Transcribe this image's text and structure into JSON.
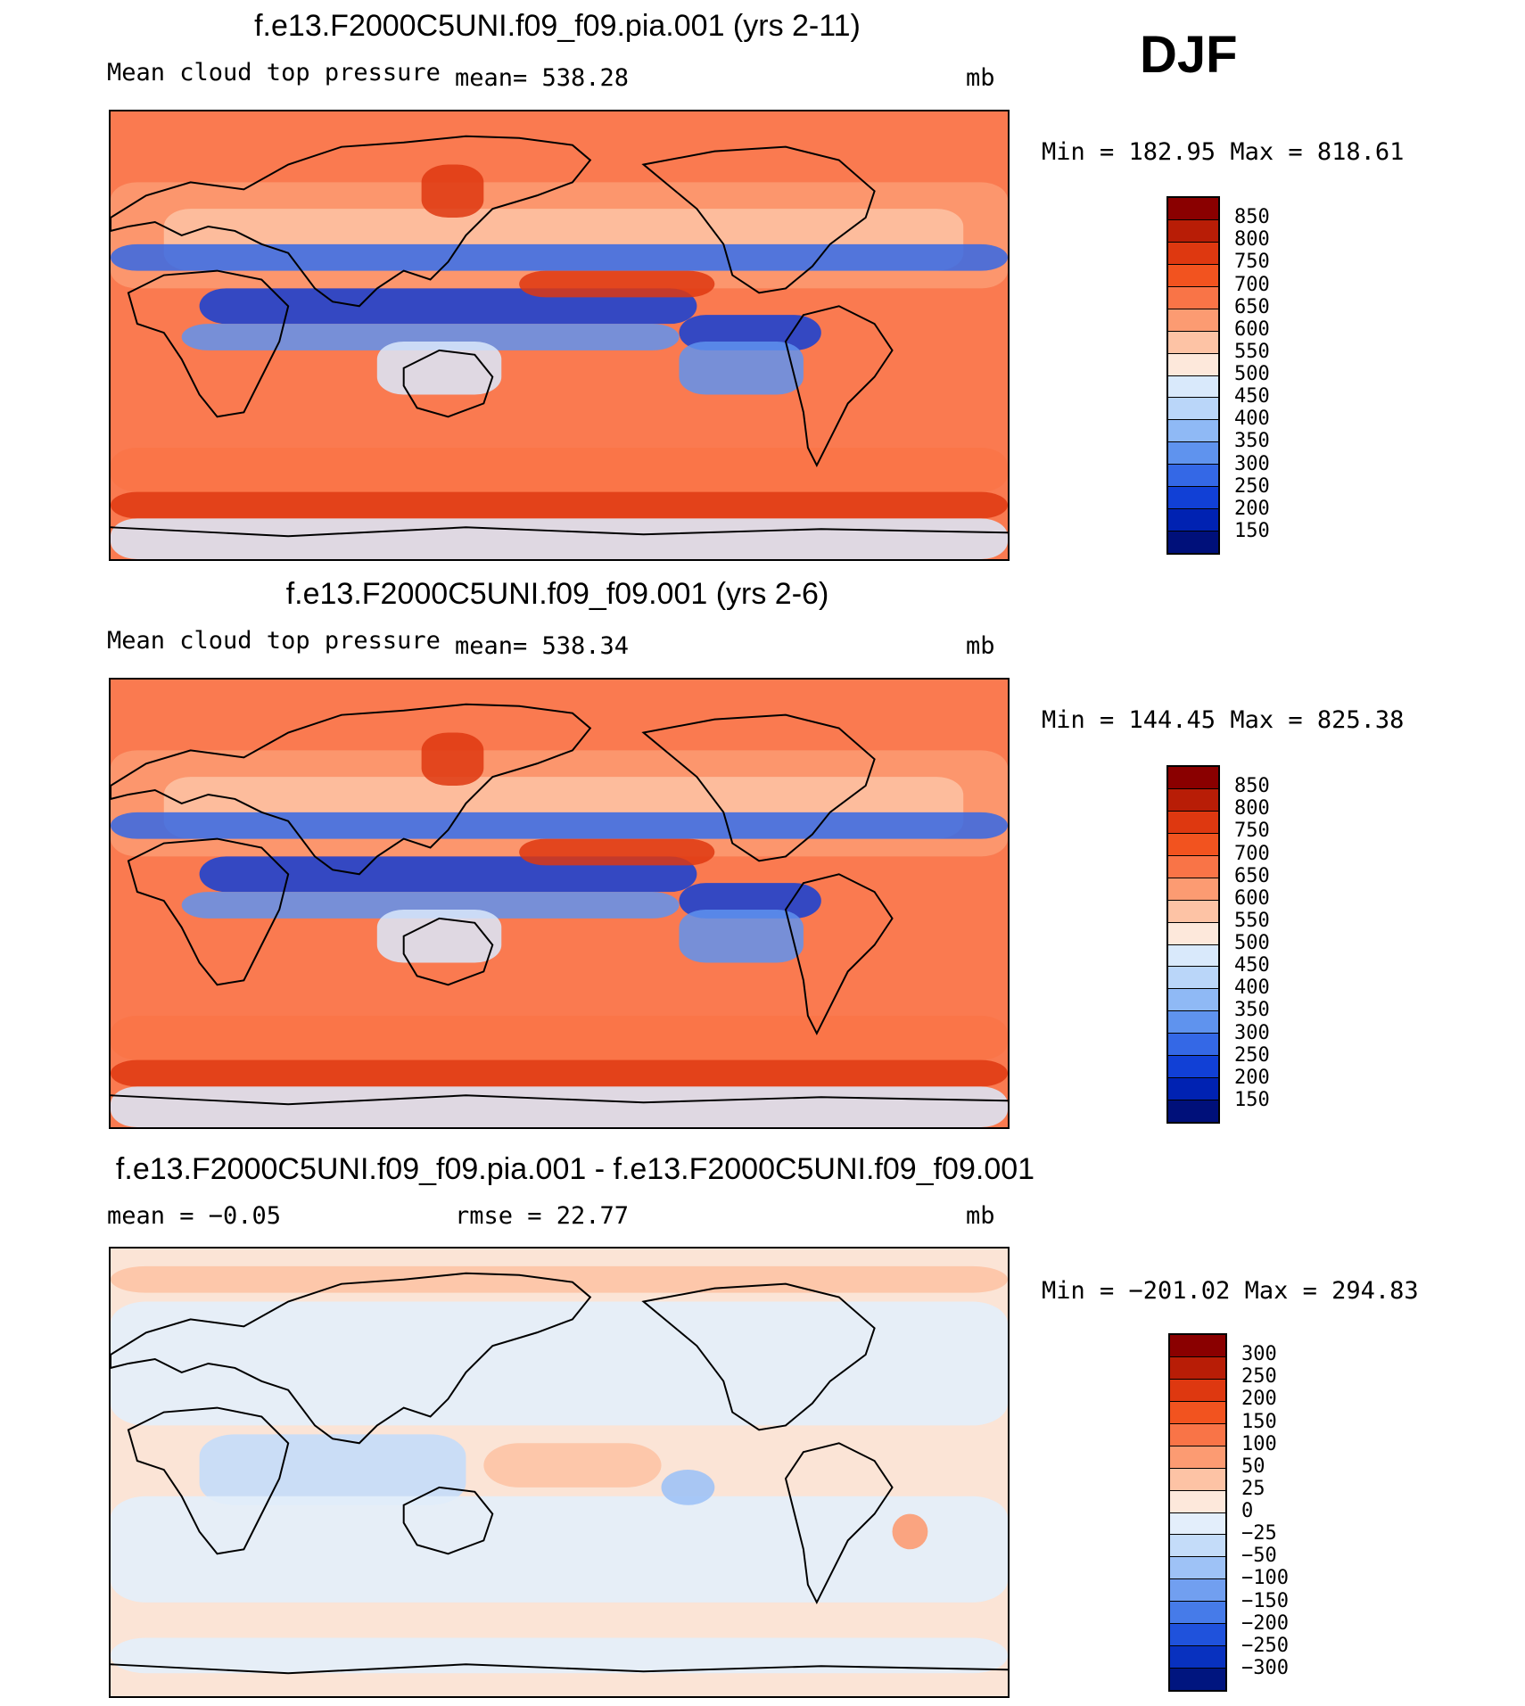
{
  "season": "DJF",
  "panels": [
    {
      "title": "f.e13.F2000C5UNI.f09_f09.pia.001 (yrs 2-11)",
      "variable": "Mean cloud top pressure",
      "stat1": "mean=  538.28",
      "stat2": "",
      "units": "mb",
      "minmax": "Min  =  182.95  Max  =  818.61",
      "colorbar": {
        "labels": [
          "850",
          "800",
          "750",
          "700",
          "650",
          "600",
          "550",
          "500",
          "450",
          "400",
          "350",
          "300",
          "250",
          "200",
          "150"
        ],
        "colors": [
          "#8a0000",
          "#b81d06",
          "#de3810",
          "#f2531f",
          "#f97447",
          "#fc9b72",
          "#fdc3a5",
          "#fde8db",
          "#d9e9fb",
          "#bad6f9",
          "#8fb9f5",
          "#5f93ee",
          "#3468e6",
          "#1140d6",
          "#0022b2",
          "#00107a"
        ]
      },
      "type": "mean"
    },
    {
      "title": "f.e13.F2000C5UNI.f09_f09.001 (yrs 2-6)",
      "variable": "Mean cloud top pressure",
      "stat1": "mean=  538.34",
      "stat2": "",
      "units": "mb",
      "minmax": "Min  =  144.45  Max  =  825.38",
      "colorbar": {
        "labels": [
          "850",
          "800",
          "750",
          "700",
          "650",
          "600",
          "550",
          "500",
          "450",
          "400",
          "350",
          "300",
          "250",
          "200",
          "150"
        ],
        "colors": [
          "#8a0000",
          "#b81d06",
          "#de3810",
          "#f2531f",
          "#f97447",
          "#fc9b72",
          "#fdc3a5",
          "#fde8db",
          "#d9e9fb",
          "#bad6f9",
          "#8fb9f5",
          "#5f93ee",
          "#3468e6",
          "#1140d6",
          "#0022b2",
          "#00107a"
        ]
      },
      "type": "mean"
    },
    {
      "title": "f.e13.F2000C5UNI.f09_f09.pia.001 - f.e13.F2000C5UNI.f09_f09.001",
      "variable": "mean =   −0.05",
      "stat1": "rmse =   22.77",
      "stat2": "",
      "units": "mb",
      "minmax": "Min  =  −201.02  Max  =  294.83",
      "colorbar": {
        "labels": [
          "300",
          "250",
          "200",
          "150",
          "100",
          "50",
          "25",
          "0",
          "−25",
          "−50",
          "−100",
          "−150",
          "−200",
          "−250",
          "−300"
        ],
        "colors": [
          "#8a0000",
          "#b81d06",
          "#de3810",
          "#f2531f",
          "#f97447",
          "#fc9b72",
          "#fdc3a5",
          "#fde8db",
          "#e3eefb",
          "#c4dcf9",
          "#9ec2f6",
          "#719ff0",
          "#467be9",
          "#1f52dc",
          "#0831bf",
          "#00157f"
        ]
      },
      "type": "diff"
    }
  ]
}
